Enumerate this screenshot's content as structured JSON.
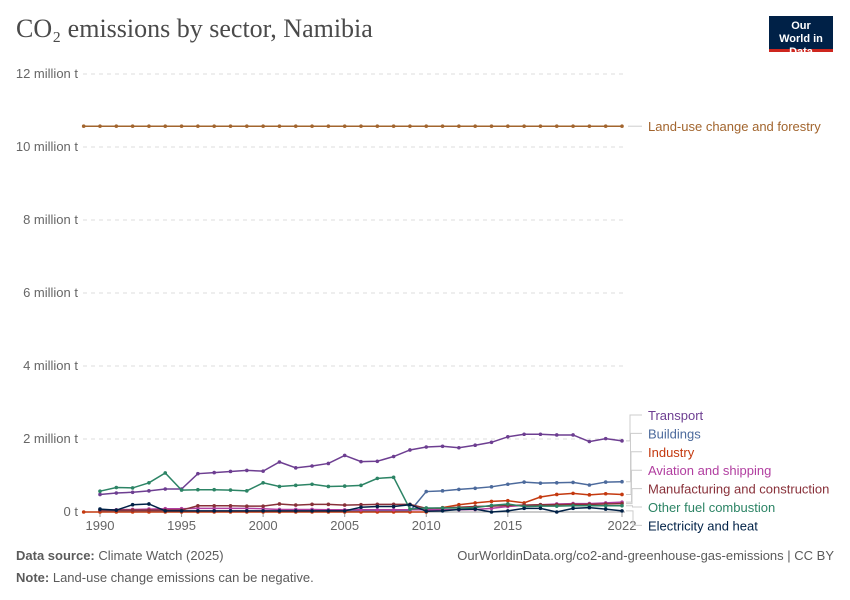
{
  "title": "CO₂ emissions by sector, Namibia",
  "logo": "Our World in Data",
  "footer": {
    "source_label": "Data source:",
    "source": "Climate Watch (2025)",
    "url": "OurWorldinData.org/co2-and-greenhouse-gas-emissions | CC BY",
    "note_label": "Note:",
    "note": "Land-use change emissions can be negative."
  },
  "chart_data": {
    "type": "line",
    "title": "CO₂ emissions by sector, Namibia",
    "xlabel": "",
    "ylabel": "",
    "ylim": [
      0,
      12000000
    ],
    "xlim": [
      1989,
      2022
    ],
    "grid": "horizontal dashed",
    "legend": "right, inline labels",
    "yticks": [
      {
        "v": 0,
        "label": "0 t"
      },
      {
        "v": 2000000,
        "label": "2 million t"
      },
      {
        "v": 4000000,
        "label": "4 million t"
      },
      {
        "v": 6000000,
        "label": "6 million t"
      },
      {
        "v": 8000000,
        "label": "8 million t"
      },
      {
        "v": 10000000,
        "label": "10 million t"
      },
      {
        "v": 12000000,
        "label": "12 million t"
      }
    ],
    "xticks": [
      1990,
      1995,
      2000,
      2005,
      2010,
      2015,
      2022
    ],
    "series": [
      {
        "name": "Land-use change and forestry",
        "color": "#a2652e",
        "start": 1989,
        "values": [
          10570000,
          10570000,
          10570000,
          10570000,
          10570000,
          10570000,
          10570000,
          10570000,
          10570000,
          10570000,
          10570000,
          10570000,
          10570000,
          10570000,
          10570000,
          10570000,
          10570000,
          10570000,
          10570000,
          10570000,
          10570000,
          10570000,
          10570000,
          10570000,
          10570000,
          10570000,
          10570000,
          10570000,
          10570000,
          10570000,
          10570000,
          10570000,
          10570000,
          10570000
        ]
      },
      {
        "name": "Transport",
        "color": "#6d3e91",
        "start": 1990,
        "values": [
          480000,
          520000,
          540000,
          580000,
          630000,
          630000,
          1050000,
          1080000,
          1110000,
          1140000,
          1120000,
          1370000,
          1210000,
          1260000,
          1330000,
          1550000,
          1380000,
          1390000,
          1520000,
          1700000,
          1780000,
          1800000,
          1760000,
          1830000,
          1910000,
          2060000,
          2130000,
          2130000,
          2110000,
          2110000,
          1930000,
          2010000,
          1950000
        ]
      },
      {
        "name": "Buildings",
        "color": "#4c6a9c",
        "start": 1990,
        "values": [
          20000,
          20000,
          20000,
          20000,
          20000,
          20000,
          20000,
          20000,
          20000,
          20000,
          20000,
          20000,
          20000,
          20000,
          20000,
          20000,
          20000,
          20000,
          20000,
          20000,
          560000,
          580000,
          620000,
          650000,
          690000,
          760000,
          820000,
          790000,
          800000,
          810000,
          740000,
          820000,
          830000
        ]
      },
      {
        "name": "Industry",
        "color": "#c4390f",
        "start": 1989,
        "values": [
          0,
          0,
          0,
          0,
          0,
          0,
          0,
          0,
          0,
          0,
          0,
          0,
          0,
          0,
          0,
          0,
          0,
          0,
          0,
          0,
          0,
          0,
          120000,
          200000,
          250000,
          290000,
          310000,
          250000,
          410000,
          480000,
          510000,
          470000,
          500000,
          480000
        ]
      },
      {
        "name": "Aviation and shipping",
        "color": "#b13ea0",
        "start": 1990,
        "values": [
          60000,
          60000,
          70000,
          80000,
          90000,
          90000,
          100000,
          100000,
          100000,
          100000,
          90000,
          70000,
          70000,
          70000,
          60000,
          60000,
          60000,
          60000,
          60000,
          60000,
          60000,
          60000,
          60000,
          70000,
          100000,
          150000,
          180000,
          200000,
          220000,
          230000,
          230000,
          250000,
          270000
        ]
      },
      {
        "name": "Manufacturing and construction",
        "color": "#883039",
        "start": 1990,
        "values": [
          50000,
          50000,
          50000,
          50000,
          50000,
          50000,
          170000,
          170000,
          170000,
          160000,
          160000,
          220000,
          190000,
          210000,
          210000,
          190000,
          200000,
          210000,
          210000,
          210000,
          100000,
          110000,
          130000,
          150000,
          160000,
          180000,
          190000,
          200000,
          200000,
          210000,
          210000,
          220000,
          230000
        ]
      },
      {
        "name": "Other fuel combustion",
        "color": "#2c8465",
        "start": 1990,
        "values": [
          570000,
          670000,
          660000,
          800000,
          1070000,
          600000,
          610000,
          610000,
          600000,
          580000,
          800000,
          700000,
          730000,
          760000,
          700000,
          710000,
          730000,
          920000,
          950000,
          80000,
          110000,
          110000,
          110000,
          120000,
          180000,
          220000,
          150000,
          160000,
          160000,
          170000,
          170000,
          170000,
          170000
        ]
      },
      {
        "name": "Electricity and heat",
        "color": "#002147",
        "start": 1990,
        "values": [
          80000,
          50000,
          200000,
          220000,
          30000,
          30000,
          30000,
          30000,
          30000,
          30000,
          30000,
          30000,
          30000,
          30000,
          30000,
          30000,
          130000,
          150000,
          150000,
          200000,
          20000,
          30000,
          70000,
          80000,
          0,
          30000,
          100000,
          100000,
          0,
          100000,
          120000,
          80000,
          30000
        ]
      }
    ],
    "label_order": [
      "Transport",
      "Buildings",
      "Industry",
      "Aviation and shipping",
      "Manufacturing and construction",
      "Other fuel combustion",
      "Electricity and heat"
    ]
  }
}
